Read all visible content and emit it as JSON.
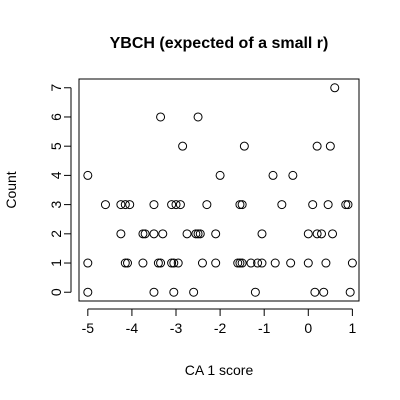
{
  "chart_data": {
    "type": "scatter",
    "title": "YBCH (expected of a small r)",
    "xlabel": "CA 1 score",
    "ylabel": "Count",
    "xlim": [
      -5.2,
      1.15
    ],
    "ylim": [
      -0.3,
      7.3
    ],
    "xticks": [
      -5,
      -4,
      -3,
      -2,
      -1,
      0,
      1
    ],
    "yticks": [
      0,
      1,
      2,
      3,
      4,
      5,
      6,
      7
    ],
    "xtick_labels": [
      "-5",
      "-4",
      "-3",
      "-2",
      "-1",
      "0",
      "1"
    ],
    "ytick_labels": [
      "0",
      "1",
      "2",
      "3",
      "4",
      "5",
      "6",
      "7"
    ],
    "grid": false,
    "marker": "open-circle",
    "points": [
      {
        "x": -5.0,
        "y": 0
      },
      {
        "x": -3.5,
        "y": 0
      },
      {
        "x": -3.05,
        "y": 0
      },
      {
        "x": -2.6,
        "y": 0
      },
      {
        "x": -1.2,
        "y": 0
      },
      {
        "x": 0.15,
        "y": 0
      },
      {
        "x": 0.35,
        "y": 0
      },
      {
        "x": 0.95,
        "y": 0
      },
      {
        "x": -5.0,
        "y": 1
      },
      {
        "x": -4.15,
        "y": 1
      },
      {
        "x": -4.1,
        "y": 1
      },
      {
        "x": -3.75,
        "y": 1
      },
      {
        "x": -3.4,
        "y": 1
      },
      {
        "x": -3.35,
        "y": 1
      },
      {
        "x": -3.1,
        "y": 1
      },
      {
        "x": -3.05,
        "y": 1
      },
      {
        "x": -2.95,
        "y": 1
      },
      {
        "x": -2.4,
        "y": 1
      },
      {
        "x": -2.1,
        "y": 1
      },
      {
        "x": -1.6,
        "y": 1
      },
      {
        "x": -1.55,
        "y": 1
      },
      {
        "x": -1.5,
        "y": 1
      },
      {
        "x": -1.3,
        "y": 1
      },
      {
        "x": -1.15,
        "y": 1
      },
      {
        "x": -1.05,
        "y": 1
      },
      {
        "x": -0.75,
        "y": 1
      },
      {
        "x": -0.4,
        "y": 1
      },
      {
        "x": 0.0,
        "y": 1
      },
      {
        "x": 0.4,
        "y": 1
      },
      {
        "x": 1.0,
        "y": 1
      },
      {
        "x": -4.25,
        "y": 2
      },
      {
        "x": -3.75,
        "y": 2
      },
      {
        "x": -3.7,
        "y": 2
      },
      {
        "x": -3.5,
        "y": 2
      },
      {
        "x": -3.3,
        "y": 2
      },
      {
        "x": -2.75,
        "y": 2
      },
      {
        "x": -2.55,
        "y": 2
      },
      {
        "x": -2.5,
        "y": 2
      },
      {
        "x": -2.45,
        "y": 2
      },
      {
        "x": -2.1,
        "y": 2
      },
      {
        "x": -1.05,
        "y": 2
      },
      {
        "x": 0.0,
        "y": 2
      },
      {
        "x": 0.2,
        "y": 2
      },
      {
        "x": 0.3,
        "y": 2
      },
      {
        "x": 0.55,
        "y": 2
      },
      {
        "x": -4.6,
        "y": 3
      },
      {
        "x": -4.25,
        "y": 3
      },
      {
        "x": -4.15,
        "y": 3
      },
      {
        "x": -4.05,
        "y": 3
      },
      {
        "x": -3.5,
        "y": 3
      },
      {
        "x": -3.1,
        "y": 3
      },
      {
        "x": -3.0,
        "y": 3
      },
      {
        "x": -2.9,
        "y": 3
      },
      {
        "x": -2.3,
        "y": 3
      },
      {
        "x": -1.55,
        "y": 3
      },
      {
        "x": -1.5,
        "y": 3
      },
      {
        "x": -0.6,
        "y": 3
      },
      {
        "x": 0.1,
        "y": 3
      },
      {
        "x": 0.45,
        "y": 3
      },
      {
        "x": 0.85,
        "y": 3
      },
      {
        "x": 0.9,
        "y": 3
      },
      {
        "x": -5.0,
        "y": 4
      },
      {
        "x": -2.0,
        "y": 4
      },
      {
        "x": -0.8,
        "y": 4
      },
      {
        "x": -0.35,
        "y": 4
      },
      {
        "x": -2.85,
        "y": 5
      },
      {
        "x": -1.45,
        "y": 5
      },
      {
        "x": 0.2,
        "y": 5
      },
      {
        "x": 0.5,
        "y": 5
      },
      {
        "x": -3.35,
        "y": 6
      },
      {
        "x": -2.5,
        "y": 6
      },
      {
        "x": 0.6,
        "y": 7
      }
    ]
  }
}
